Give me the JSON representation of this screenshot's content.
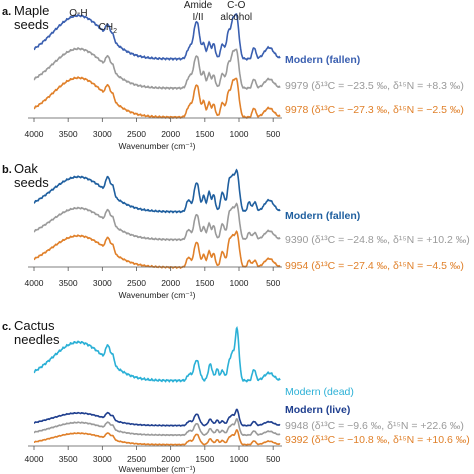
{
  "panels": [
    {
      "letter": "a.",
      "name_lines": [
        "Maple",
        "seeds"
      ]
    },
    {
      "letter": "b.",
      "name_lines": [
        "Oak",
        "seeds"
      ]
    },
    {
      "letter": "c.",
      "name_lines": [
        "Cactus",
        "needles"
      ]
    }
  ],
  "peak_annotations": [
    {
      "label": "O-H",
      "wavenumber": 3350
    },
    {
      "label": "CH",
      "subscript": "2",
      "wavenumber": 2920
    },
    {
      "label": "Amide",
      "label2": "I/II",
      "wavenumber": 1600
    },
    {
      "label": "C-O",
      "label2": "alcohol",
      "wavenumber": 1040
    }
  ],
  "colors": {
    "modern_fallen": "#3a5fb0",
    "modern_oak": "#1f5f9f",
    "modern_dead": "#2bb0d6",
    "modern_live": "#1f3f8f",
    "grey": "#9a9a9a",
    "orange": "#e0802a"
  },
  "chart_data": [
    {
      "type": "line",
      "panel": "a",
      "xlabel": "Wavenumber (cm⁻¹)",
      "xlim": [
        4000,
        400
      ],
      "x_reversed": true,
      "xticks": [
        "4000",
        "3500",
        "3000",
        "2500",
        "2000",
        "1500",
        "1000",
        "500"
      ],
      "series": [
        {
          "name": "Modern (fallen)",
          "color": "#3a5fb0",
          "label_bold": true,
          "profile": "maple_modern",
          "amplitude": 1.1,
          "offset": 0
        },
        {
          "name": "9979 (δ¹³C = −23.5 ‰, δ¹⁵N = +8.3 ‰)",
          "color": "#9a9a9a",
          "label_bold": false,
          "profile": "maple",
          "amplitude": 1.0,
          "offset": -0.7
        },
        {
          "name": "9978 (δ¹³C = −27.3 ‰, δ¹⁵N = −2.5 ‰)",
          "color": "#e0802a",
          "label_bold": false,
          "profile": "maple",
          "amplitude": 1.0,
          "offset": -1.4
        }
      ]
    },
    {
      "type": "line",
      "panel": "b",
      "xlabel": "Wavenumber (cm⁻¹)",
      "xlim": [
        4000,
        400
      ],
      "x_reversed": true,
      "xticks": [
        "4000",
        "3500",
        "3000",
        "2500",
        "2000",
        "1500",
        "1000",
        "500"
      ],
      "series": [
        {
          "name": "Modern (fallen)",
          "color": "#1f5f9f",
          "label_bold": true,
          "profile": "oak_modern",
          "amplitude": 1.05,
          "offset": 0
        },
        {
          "name": "9390 (δ¹³C = −24.8 ‰, δ¹⁵N = +10.2 ‰)",
          "color": "#9a9a9a",
          "label_bold": false,
          "profile": "oak",
          "amplitude": 0.95,
          "offset": -0.75
        },
        {
          "name": "9954 (δ¹³C = −27.4 ‰, δ¹⁵N = −4.5 ‰)",
          "color": "#e0802a",
          "label_bold": false,
          "profile": "oak",
          "amplitude": 0.95,
          "offset": -1.5
        }
      ]
    },
    {
      "type": "line",
      "panel": "c",
      "xlabel": "Wavenumber (cm⁻¹)",
      "xlim": [
        4000,
        400
      ],
      "x_reversed": true,
      "xticks": [
        "4000",
        "3500",
        "3000",
        "2500",
        "2000",
        "1500",
        "1000",
        "500"
      ],
      "series": [
        {
          "name": "Modern (dead)",
          "color": "#2bb0d6",
          "label_bold": false,
          "profile": "cactus_dead",
          "amplitude": 1.35,
          "offset": 0
        },
        {
          "name": "Modern (live)",
          "color": "#1f3f8f",
          "label_bold": true,
          "profile": "cactus",
          "amplitude": 0.55,
          "offset": -1.15
        },
        {
          "name": "9948 (δ¹³C = −9.6 ‰, δ¹⁵N = +22.6 ‰)",
          "color": "#9a9a9a",
          "label_bold": false,
          "profile": "cactus",
          "amplitude": 0.55,
          "offset": -1.4
        },
        {
          "name": "9392 (δ¹³C = −10.8 ‰, δ¹⁵N = +10.6 ‰)",
          "color": "#e0802a",
          "label_bold": false,
          "profile": "cactus",
          "amplitude": 0.5,
          "offset": -1.65
        }
      ]
    }
  ]
}
